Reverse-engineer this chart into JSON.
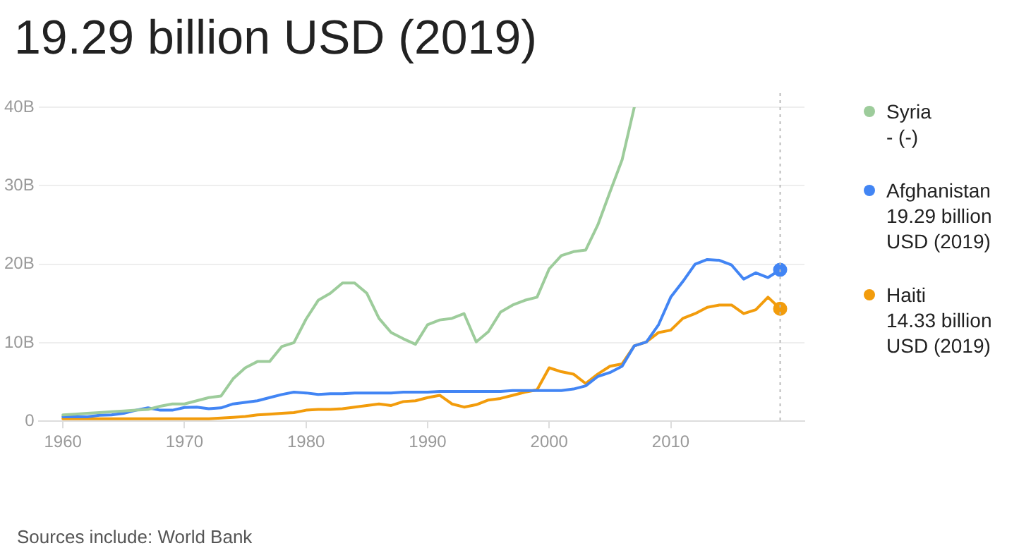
{
  "chart_data": {
    "type": "line",
    "title": "19.29 billion USD (2019)",
    "x": [
      1960,
      1961,
      1962,
      1963,
      1964,
      1965,
      1966,
      1967,
      1968,
      1969,
      1970,
      1971,
      1972,
      1973,
      1974,
      1975,
      1976,
      1977,
      1978,
      1979,
      1980,
      1981,
      1982,
      1983,
      1984,
      1985,
      1986,
      1987,
      1988,
      1989,
      1990,
      1991,
      1992,
      1993,
      1994,
      1995,
      1996,
      1997,
      1998,
      1999,
      2000,
      2001,
      2002,
      2003,
      2004,
      2005,
      2006,
      2007,
      2008,
      2009,
      2010,
      2011,
      2012,
      2013,
      2014,
      2015,
      2016,
      2017,
      2018,
      2019
    ],
    "series": [
      {
        "name": "Syria",
        "color": "#9dcc9b",
        "values": [
          0.8,
          0.9,
          1.0,
          1.1,
          1.2,
          1.3,
          1.4,
          1.5,
          1.9,
          2.2,
          2.2,
          2.6,
          3.0,
          3.2,
          5.4,
          6.8,
          7.6,
          7.6,
          9.5,
          10.0,
          13.0,
          15.4,
          16.3,
          17.6,
          17.6,
          16.3,
          13.1,
          11.3,
          10.5,
          9.8,
          12.3,
          12.9,
          13.1,
          13.7,
          10.1,
          11.4,
          13.9,
          14.8,
          15.4,
          15.8,
          19.4,
          21.1,
          21.6,
          21.8,
          25.0,
          29.2,
          33.3,
          40,
          null,
          null,
          null,
          null,
          null,
          null,
          null,
          null,
          null,
          null,
          null,
          null
        ]
      },
      {
        "name": "Afghanistan",
        "color": "#4285f4",
        "values": [
          0.55,
          0.55,
          0.55,
          0.75,
          0.8,
          1.0,
          1.4,
          1.7,
          1.4,
          1.4,
          1.75,
          1.8,
          1.6,
          1.7,
          2.2,
          2.4,
          2.6,
          3.0,
          3.4,
          3.7,
          3.6,
          3.4,
          3.5,
          3.5,
          3.6,
          3.6,
          3.6,
          3.6,
          3.7,
          3.7,
          3.7,
          3.8,
          3.8,
          3.8,
          3.8,
          3.8,
          3.8,
          3.9,
          3.9,
          3.9,
          3.9,
          3.9,
          4.1,
          4.5,
          5.7,
          6.2,
          7.0,
          9.6,
          10.1,
          12.3,
          15.8,
          17.8,
          20.0,
          20.6,
          20.5,
          19.9,
          18.1,
          18.9,
          18.3,
          19.29
        ]
      },
      {
        "name": "Haiti",
        "color": "#f29c0c",
        "values": [
          0.3,
          0.3,
          0.3,
          0.3,
          0.3,
          0.3,
          0.3,
          0.3,
          0.3,
          0.3,
          0.3,
          0.3,
          0.3,
          0.4,
          0.5,
          0.6,
          0.8,
          0.9,
          1.0,
          1.1,
          1.4,
          1.5,
          1.5,
          1.6,
          1.8,
          2.0,
          2.2,
          2.0,
          2.5,
          2.6,
          3.0,
          3.3,
          2.2,
          1.8,
          2.1,
          2.7,
          2.9,
          3.3,
          3.7,
          4.0,
          6.8,
          6.3,
          6.0,
          4.8,
          6.0,
          7.0,
          7.3,
          9.6,
          10.1,
          11.3,
          11.6,
          13.1,
          13.7,
          14.5,
          14.8,
          14.8,
          13.7,
          14.2,
          15.8,
          14.33
        ]
      }
    ],
    "xlim": [
      1958,
      2021
    ],
    "xticks": [
      1960,
      1970,
      1980,
      1990,
      2000,
      2010
    ],
    "ylim": [
      0,
      40
    ],
    "yticks": [
      0,
      {
        "value": 10,
        "label": "10B"
      },
      {
        "value": 20,
        "label": "20B"
      },
      {
        "value": 30,
        "label": "30B"
      },
      {
        "value": 40,
        "label": "40B"
      }
    ],
    "grid": "y",
    "legend": "right",
    "ref_lines": [
      {
        "axis": "x",
        "value": 2019,
        "line_style": "dotted",
        "color": "#bbbbbb"
      }
    ],
    "annotations": [
      "- (-)",
      "19.29 billion USD (2019)",
      "14.33 billion USD (2019)",
      "Sources include: World Bank"
    ]
  }
}
